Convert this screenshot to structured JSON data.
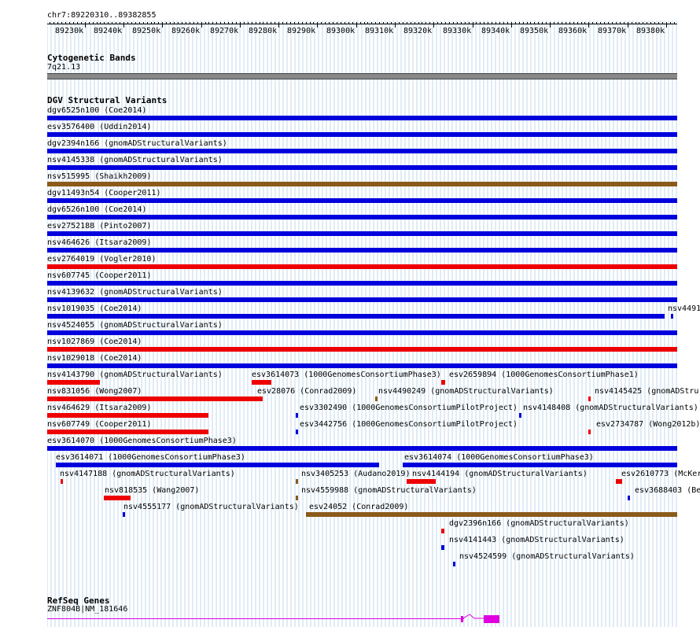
{
  "colors": {
    "blue": "#0000dd",
    "red": "#ee0000",
    "brown": "#8b5a1a",
    "gene": "#e000e0",
    "grid": "#c0d8ec",
    "band": "#888888"
  },
  "ruler": {
    "position": "chr7:89220310..89382855",
    "ticks": [
      "89230k",
      "89240k",
      "89250k",
      "89260k",
      "89270k",
      "89280k",
      "89290k",
      "89300k",
      "89310k",
      "89320k",
      "89330k",
      "89340k",
      "89350k",
      "89360k",
      "89370k",
      "89380k"
    ]
  },
  "cytoband": {
    "title": "Cytogenetic Bands",
    "label": "7q21.13"
  },
  "dgv": {
    "title": "DGV Structural Variants",
    "features": [
      {
        "label": "dgv6525n100 (Coe2014)",
        "color": "blue",
        "start": 89220310,
        "end": 89382855
      },
      {
        "label": "esv3576400 (Uddin2014)",
        "color": "blue",
        "start": 89220310,
        "end": 89382855
      },
      {
        "label": "dgv2394n166 (gnomADStructuralVariants)",
        "color": "blue",
        "start": 89220310,
        "end": 89382855
      },
      {
        "label": "nsv4145338 (gnomADStructuralVariants)",
        "color": "blue",
        "start": 89220310,
        "end": 89382855
      },
      {
        "label": "nsv515995 (Shaikh2009)",
        "color": "brown",
        "start": 89220310,
        "end": 89382855
      },
      {
        "label": "dgv11493n54 (Cooper2011)",
        "color": "blue",
        "start": 89220310,
        "end": 89382855
      },
      {
        "label": "dgv6526n100 (Coe2014)",
        "color": "blue",
        "start": 89220310,
        "end": 89382855
      },
      {
        "label": "esv2752188 (Pinto2007)",
        "color": "blue",
        "start": 89220310,
        "end": 89382855
      },
      {
        "label": "nsv464626 (Itsara2009)",
        "color": "blue",
        "start": 89220310,
        "end": 89382855
      },
      {
        "label": "esv2764019 (Vogler2010)",
        "color": "red",
        "start": 89220310,
        "end": 89382855
      },
      {
        "label": "nsv607745 (Cooper2011)",
        "color": "blue",
        "start": 89220310,
        "end": 89382855
      },
      {
        "label": "nsv4139632 (gnomADStructuralVariants)",
        "color": "blue",
        "start": 89220310,
        "end": 89382855
      },
      {
        "label": "nsv1019035 (Coe2014)",
        "color": "blue",
        "start": 89220310,
        "end": 89379600
      },
      {
        "label": "nsv4491",
        "color": "blue",
        "start": 89381300,
        "end": 89381600
      },
      {
        "label": "nsv4524055 (gnomADStructuralVariants)",
        "color": "blue",
        "start": 89220310,
        "end": 89382855
      },
      {
        "label": "nsv1027869 (Coe2014)",
        "color": "red",
        "start": 89220310,
        "end": 89382855
      },
      {
        "label": "nsv1029018 (Coe2014)",
        "color": "blue",
        "start": 89220310,
        "end": 89382855
      },
      {
        "label": "nsv4143790 (gnomADStructuralVariants)",
        "color": "red",
        "start": 89220310,
        "end": 89234000
      },
      {
        "label": "esv3614073 (1000GenomesConsortiumPhase3)",
        "color": "red",
        "start": 89273000,
        "end": 89278000
      },
      {
        "label": "esv2659894 (1000GenomesConsortiumPhase1)",
        "color": "red",
        "start": 89322000,
        "end": 89323000
      },
      {
        "label": "nsv831056 (Wong2007)",
        "color": "red",
        "start": 89220310,
        "end": 89274000
      },
      {
        "label": "esv28076 (Conrad2009)",
        "color": "red",
        "start": 89274000,
        "end": 89275800
      },
      {
        "label": "nsv4490249 (gnomADStructuralVariants)",
        "color": "brown",
        "start": 89305000,
        "end": 89305400
      },
      {
        "label": "nsv4145425 (gnomADStru",
        "color": "red",
        "start": 89360000,
        "end": 89360600
      },
      {
        "label": "nsv464629 (Itsara2009)",
        "color": "red",
        "start": 89220310,
        "end": 89262000
      },
      {
        "label": "esv3302490 (1000GenomesConsortiumPilotProject)",
        "color": "blue",
        "start": 89284500,
        "end": 89285000
      },
      {
        "label": "nsv4148408 (gnomADStructuralVariants)",
        "color": "blue",
        "start": 89342000,
        "end": 89342500
      },
      {
        "label": "nsv607749 (Cooper2011)",
        "color": "red",
        "start": 89220310,
        "end": 89262000
      },
      {
        "label": "esv3442756 (1000GenomesConsortiumPilotProject)",
        "color": "blue",
        "start": 89284500,
        "end": 89285000
      },
      {
        "label": "esv2734787 (Wong2012b)",
        "color": "red",
        "start": 89360000,
        "end": 89360600
      },
      {
        "label": "esv3614070 (1000GenomesConsortiumPhase3)",
        "color": "blue",
        "start": 89220310,
        "end": 89382855
      },
      {
        "label": "esv3614071 (1000GenomesConsortiumPhase3)",
        "color": "blue",
        "start": 89222500,
        "end": 89306000
      },
      {
        "label": "esv3614074 (1000GenomesConsortiumPhase3)",
        "color": "blue",
        "start": 89312000,
        "end": 89382855
      },
      {
        "label": "nsv4147188 (gnomADStructuralVariants)",
        "color": "red",
        "start": 89223800,
        "end": 89224200
      },
      {
        "label": "nsv3405253 (Audano2019)",
        "color": "brown",
        "start": 89284500,
        "end": 89284900
      },
      {
        "label": "nsv4144194 (gnomADStructuralVariants)",
        "color": "red",
        "start": 89313000,
        "end": 89320500
      },
      {
        "label": "esv2610773 (McKer",
        "color": "red",
        "start": 89367000,
        "end": 89368600
      },
      {
        "label": "nsv818535 (Wang2007)",
        "color": "red",
        "start": 89235000,
        "end": 89242000
      },
      {
        "label": "nsv4559988 (gnomADStructuralVariants)",
        "color": "brown",
        "start": 89284500,
        "end": 89284900
      },
      {
        "label": "esv3688403 (Be",
        "color": "blue",
        "start": 89370000,
        "end": 89370400
      },
      {
        "label": "nsv4555177 (gnomADStructuralVariants)",
        "color": "blue",
        "start": 89239800,
        "end": 89240200
      },
      {
        "label": "esv24052 (Conrad2009)",
        "color": "brown",
        "start": 89287000,
        "end": 89382855
      },
      {
        "label": "dgv2396n166 (gnomADStructuralVariants)",
        "color": "red",
        "start": 89322000,
        "end": 89322800
      },
      {
        "label": "nsv4141443 (gnomADStructuralVariants)",
        "color": "blue",
        "start": 89322000,
        "end": 89322800
      },
      {
        "label": "nsv4524599 (gnomADStructuralVariants)",
        "color": "blue",
        "start": 89325000,
        "end": 89325400
      }
    ]
  },
  "refseq": {
    "title": "RefSeq Genes",
    "label": "ZNF804B|NM_181646"
  }
}
